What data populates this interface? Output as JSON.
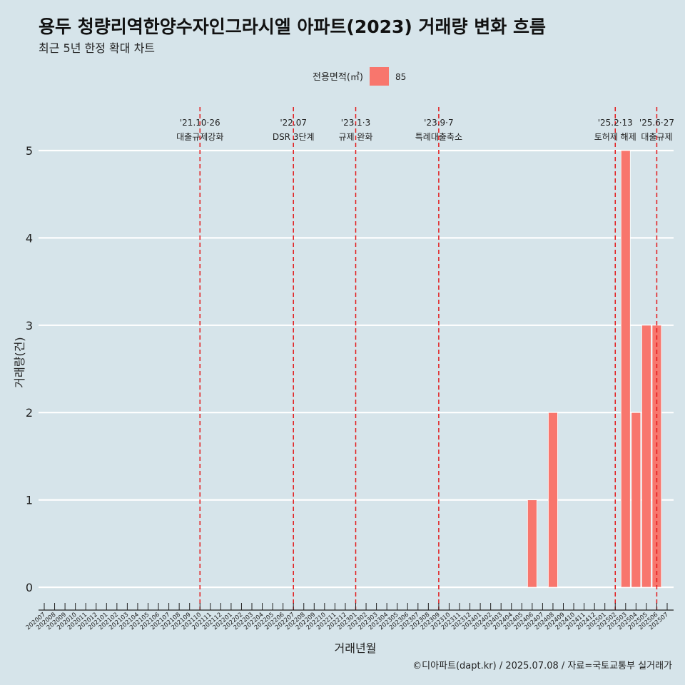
{
  "title": "용두 청량리역한양수자인그라시엘 아파트(2023) 거래량 변화 흐름",
  "subtitle": "최근 5년 한정 확대 차트",
  "caption": "©디아파트(dapt.kr) / 2025.07.08 / 자료=국토교통부 실거래가",
  "chart_data": {
    "type": "bar",
    "xlabel": "거래년월",
    "ylabel": "거래량(건)",
    "ylim": [
      0,
      5
    ],
    "y_ticks": [
      0,
      1,
      2,
      3,
      4,
      5
    ],
    "legend": {
      "title": "전용면적(㎡)",
      "position": "top",
      "entries": [
        "85"
      ],
      "color": "#f8766d"
    },
    "categories": [
      "202007",
      "202008",
      "202009",
      "202010",
      "202011",
      "202012",
      "202101",
      "202102",
      "202103",
      "202104",
      "202105",
      "202106",
      "202107",
      "202108",
      "202109",
      "202110",
      "202111",
      "202112",
      "202201",
      "202202",
      "202203",
      "202204",
      "202205",
      "202206",
      "202207",
      "202208",
      "202209",
      "202210",
      "202211",
      "202212",
      "202301",
      "202302",
      "202303",
      "202304",
      "202305",
      "202306",
      "202307",
      "202308",
      "202309",
      "202310",
      "202311",
      "202312",
      "202401",
      "202402",
      "202403",
      "202404",
      "202405",
      "202406",
      "202407",
      "202408",
      "202409",
      "202410",
      "202411",
      "202412",
      "202501",
      "202502",
      "202503",
      "202504",
      "202505",
      "202506",
      "202507"
    ],
    "series": [
      {
        "name": "85",
        "color": "#f8766d",
        "values": [
          0,
          0,
          0,
          0,
          0,
          0,
          0,
          0,
          0,
          0,
          0,
          0,
          0,
          0,
          0,
          0,
          0,
          0,
          0,
          0,
          0,
          0,
          0,
          0,
          0,
          0,
          0,
          0,
          0,
          0,
          0,
          0,
          0,
          0,
          0,
          0,
          0,
          0,
          0,
          0,
          0,
          0,
          0,
          0,
          0,
          0,
          0,
          1,
          0,
          2,
          0,
          0,
          0,
          0,
          0,
          0,
          5,
          2,
          3,
          3,
          0
        ]
      }
    ],
    "annotations": [
      {
        "category": "202110",
        "date": "'21.10·26",
        "label": "대출규제강화"
      },
      {
        "category": "202207",
        "date": "'22.07",
        "label": "DSR 3단계"
      },
      {
        "category": "202301",
        "date": "'23.1·3",
        "label": "규제 완화"
      },
      {
        "category": "202309",
        "date": "'23.9·7",
        "label": "특례대출축소"
      },
      {
        "category": "202502",
        "date": "'25.2·13",
        "label": "토허제 해제"
      },
      {
        "category": "202506",
        "date": "'25.6·27",
        "label": "대출규제"
      }
    ],
    "colors": {
      "background": "#d6e4ea",
      "grid": "#ffffff",
      "annotation_line": "#e31a1c",
      "bar": "#f8766d"
    }
  }
}
